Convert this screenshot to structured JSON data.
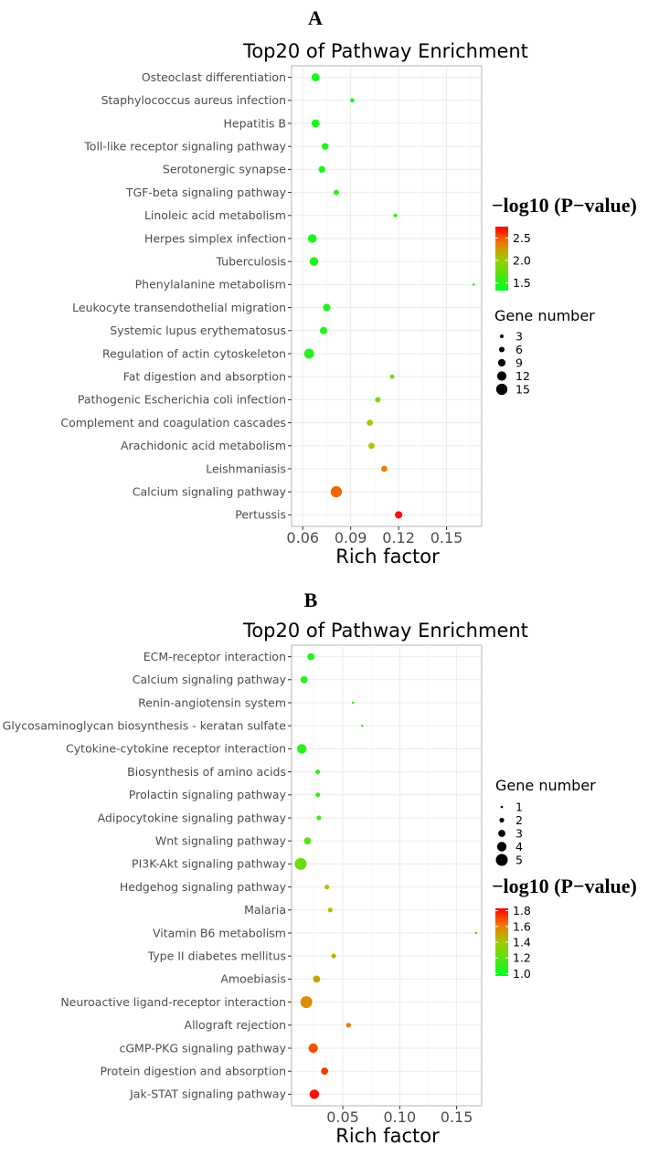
{
  "chart_data": [
    {
      "panel": "A",
      "type": "scatter",
      "title": "Top20 of Pathway Enrichment",
      "xlabel": "Rich factor",
      "xlim": [
        0.053,
        0.172
      ],
      "xticks": [
        "0.06",
        "0.09",
        "0.12",
        "0.15"
      ],
      "xtick_values": [
        0.06,
        0.09,
        0.12,
        0.15
      ],
      "color_legend_title": "−log10 (P−value)",
      "color_range": [
        1.33,
        2.75
      ],
      "color_ticks": [
        "2.5",
        "2.0",
        "1.5"
      ],
      "color_tick_values": [
        2.5,
        2.0,
        1.5
      ],
      "size_legend_title": "Gene number",
      "size_legend_values": [
        3,
        6,
        9,
        12,
        15
      ],
      "size_range": [
        1,
        16
      ],
      "size_legend_first": false,
      "grid": true,
      "points": [
        {
          "category": "Osteoclast differentiation",
          "x": 0.068,
          "size": 10,
          "color": 1.42
        },
        {
          "category": "Staphylococcus aureus infection",
          "x": 0.091,
          "size": 4,
          "color": 1.45
        },
        {
          "category": "Hepatitis B",
          "x": 0.068,
          "size": 10,
          "color": 1.42
        },
        {
          "category": "Toll-like receptor signaling pathway",
          "x": 0.074,
          "size": 8,
          "color": 1.45
        },
        {
          "category": "Serotonergic synapse",
          "x": 0.072,
          "size": 8,
          "color": 1.45
        },
        {
          "category": "TGF-beta signaling pathway",
          "x": 0.081,
          "size": 6,
          "color": 1.5
        },
        {
          "category": "Linoleic acid metabolism",
          "x": 0.118,
          "size": 3,
          "color": 1.52
        },
        {
          "category": "Herpes simplex infection",
          "x": 0.066,
          "size": 11,
          "color": 1.42
        },
        {
          "category": "Tuberculosis",
          "x": 0.067,
          "size": 11,
          "color": 1.43
        },
        {
          "category": "Phenylalanine metabolism",
          "x": 0.167,
          "size": 1,
          "color": 1.55
        },
        {
          "category": "Leukocyte transendothelial migration",
          "x": 0.075,
          "size": 9,
          "color": 1.45
        },
        {
          "category": "Systemic lupus erythematosus",
          "x": 0.073,
          "size": 9,
          "color": 1.5
        },
        {
          "category": "Regulation of actin cytoskeleton",
          "x": 0.064,
          "size": 13,
          "color": 1.5
        },
        {
          "category": "Fat digestion and absorption",
          "x": 0.116,
          "size": 4,
          "color": 1.75
        },
        {
          "category": "Pathogenic Escherichia coli infection",
          "x": 0.107,
          "size": 6,
          "color": 1.85
        },
        {
          "category": "Complement and coagulation cascades",
          "x": 0.102,
          "size": 7,
          "color": 2.0
        },
        {
          "category": "Arachidonic acid metabolism",
          "x": 0.103,
          "size": 7,
          "color": 2.05
        },
        {
          "category": "Leishmaniasis",
          "x": 0.111,
          "size": 7,
          "color": 2.35
        },
        {
          "category": "Calcium signaling pathway",
          "x": 0.081,
          "size": 15,
          "color": 2.45
        },
        {
          "category": "Pertussis",
          "x": 0.12,
          "size": 9,
          "color": 2.7
        }
      ]
    },
    {
      "panel": "B",
      "type": "scatter",
      "title": "Top20 of Pathway Enrichment",
      "xlabel": "Rich factor",
      "xlim": [
        0.005,
        0.172
      ],
      "xticks": [
        "0.05",
        "0.10",
        "0.15"
      ],
      "xtick_values": [
        0.05,
        0.1,
        0.15
      ],
      "color_legend_title": "−log10 (P−value)",
      "color_range": [
        0.97,
        1.83
      ],
      "color_ticks": [
        "1.8",
        "1.6",
        "1.4",
        "1.2",
        "1.0"
      ],
      "color_tick_values": [
        1.8,
        1.6,
        1.4,
        1.2,
        1.0
      ],
      "size_legend_title": "Gene number",
      "size_legend_values": [
        1,
        2,
        3,
        4,
        5
      ],
      "size_range": [
        1,
        5
      ],
      "size_legend_first": true,
      "grid": true,
      "points": [
        {
          "category": "ECM-receptor interaction",
          "x": 0.022,
          "size": 3,
          "color": 1.05
        },
        {
          "category": "Calcium signaling pathway",
          "x": 0.016,
          "size": 3,
          "color": 1.05
        },
        {
          "category": "Renin-angiotensin system",
          "x": 0.059,
          "size": 1,
          "color": 1.05
        },
        {
          "category": "Glycosaminoglycan biosynthesis - keratan sulfate",
          "x": 0.067,
          "size": 1,
          "color": 1.07
        },
        {
          "category": "Cytokine-cytokine receptor interaction",
          "x": 0.014,
          "size": 4,
          "color": 1.08
        },
        {
          "category": "Biosynthesis of amino acids",
          "x": 0.028,
          "size": 2,
          "color": 1.12
        },
        {
          "category": "Prolactin signaling pathway",
          "x": 0.028,
          "size": 2,
          "color": 1.15
        },
        {
          "category": "Adipocytokine signaling pathway",
          "x": 0.029,
          "size": 2,
          "color": 1.18
        },
        {
          "category": "Wnt signaling pathway",
          "x": 0.019,
          "size": 3,
          "color": 1.2
        },
        {
          "category": "PI3K-Akt signaling pathway",
          "x": 0.013,
          "size": 5,
          "color": 1.25
        },
        {
          "category": "Hedgehog signaling pathway",
          "x": 0.036,
          "size": 2,
          "color": 1.38
        },
        {
          "category": "Malaria",
          "x": 0.039,
          "size": 2,
          "color": 1.42
        },
        {
          "category": "Vitamin B6 metabolism",
          "x": 0.167,
          "size": 1,
          "color": 1.48
        },
        {
          "category": "Type II diabetes mellitus",
          "x": 0.042,
          "size": 2,
          "color": 1.45
        },
        {
          "category": "Amoebiasis",
          "x": 0.027,
          "size": 3,
          "color": 1.5
        },
        {
          "category": "Neuroactive ligand-receptor interaction",
          "x": 0.018,
          "size": 5,
          "color": 1.55
        },
        {
          "category": "Allograft rejection",
          "x": 0.055,
          "size": 2,
          "color": 1.62
        },
        {
          "category": "cGMP-PKG signaling pathway",
          "x": 0.024,
          "size": 4,
          "color": 1.68
        },
        {
          "category": "Protein digestion and absorption",
          "x": 0.034,
          "size": 3,
          "color": 1.72
        },
        {
          "category": "Jak-STAT signaling pathway",
          "x": 0.025,
          "size": 4,
          "color": 1.8
        }
      ]
    }
  ]
}
